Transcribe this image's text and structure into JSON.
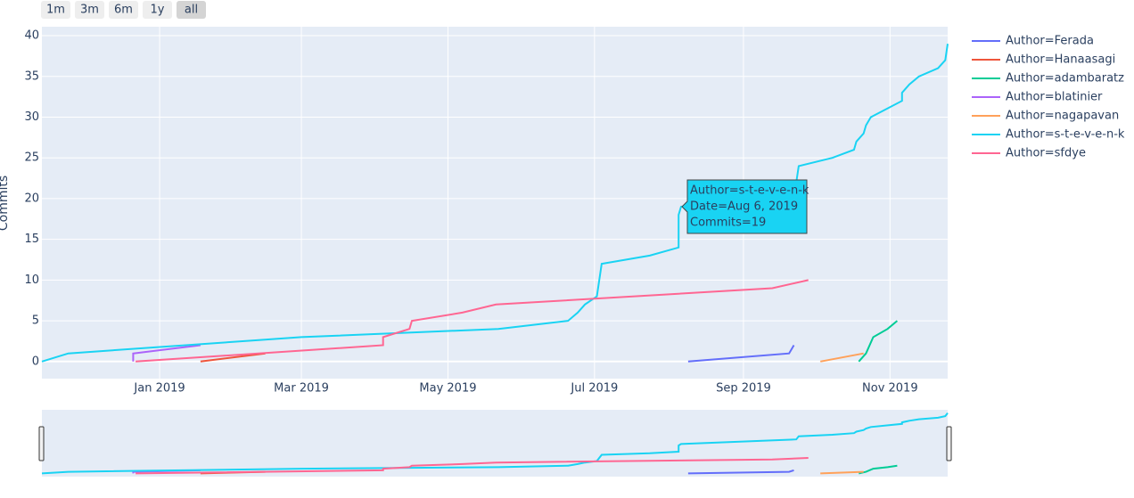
{
  "chart_data": {
    "type": "line",
    "y_label": "Commits",
    "buttons": [
      "1m",
      "3m",
      "6m",
      "1y",
      "all"
    ],
    "active_button": 4,
    "xlim": [
      "2018-11-13",
      "2019-11-25"
    ],
    "xticks": [
      {
        "value": "2019-01-01",
        "label": "Jan 2019"
      },
      {
        "value": "2019-03-01",
        "label": "Mar 2019"
      },
      {
        "value": "2019-05-01",
        "label": "May 2019"
      },
      {
        "value": "2019-07-01",
        "label": "Jul 2019"
      },
      {
        "value": "2019-09-01",
        "label": "Sep 2019"
      },
      {
        "value": "2019-11-01",
        "label": "Nov 2019"
      }
    ],
    "ylim": [
      -2.1,
      41.1
    ],
    "yticks": [
      0,
      5,
      10,
      15,
      20,
      25,
      30,
      35,
      40
    ],
    "grid": true,
    "legend_position": "right",
    "range_slider": true,
    "tooltip": [
      "Author=s-t-e-v-e-n-k",
      "Date=Aug 6, 2019",
      "Commits=19"
    ],
    "series": [
      {
        "name": "Author=Ferada",
        "color": "#636efa",
        "x": [
          "2019-08-09",
          "2019-09-20",
          "2019-09-22"
        ],
        "values": [
          0,
          1,
          2
        ]
      },
      {
        "name": "Author=Hanaasagi",
        "color": "#ef553b",
        "x": [
          "2019-01-18",
          "2019-02-14"
        ],
        "values": [
          0,
          1
        ]
      },
      {
        "name": "Author=adambaratz",
        "color": "#00cc96",
        "x": [
          "2019-10-19",
          "2019-10-22",
          "2019-10-25",
          "2019-10-31",
          "2019-11-04"
        ],
        "values": [
          0,
          1,
          3,
          4,
          5
        ]
      },
      {
        "name": "Author=blatinier",
        "color": "#ab63fa",
        "x": [
          "2018-12-21",
          "2018-12-21",
          "2019-01-18"
        ],
        "values": [
          0,
          1,
          2
        ]
      },
      {
        "name": "Author=nagapavan",
        "color": "#ffa15a",
        "x": [
          "2019-10-03",
          "2019-10-21"
        ],
        "values": [
          0,
          1
        ]
      },
      {
        "name": "Author=s-t-e-v-e-n-k",
        "color": "#19d3f3",
        "x": [
          "2018-11-13",
          "2018-11-24",
          "2019-03-01",
          "2019-05-22",
          "2019-06-20",
          "2019-06-24",
          "2019-06-27",
          "2019-07-02",
          "2019-07-03",
          "2019-07-04",
          "2019-07-24",
          "2019-08-05",
          "2019-08-05",
          "2019-08-06",
          "2019-09-23",
          "2019-09-24",
          "2019-10-08",
          "2019-10-17",
          "2019-10-18",
          "2019-10-21",
          "2019-10-22",
          "2019-10-24",
          "2019-11-06",
          "2019-11-06",
          "2019-11-09",
          "2019-11-13",
          "2019-11-21",
          "2019-11-24",
          "2019-11-25"
        ],
        "values": [
          0,
          1,
          3,
          4,
          5,
          6,
          7,
          8,
          10,
          12,
          13,
          14,
          18,
          19,
          22,
          24,
          25,
          26,
          27,
          28,
          29,
          30,
          32,
          33,
          34,
          35,
          36,
          37,
          39
        ]
      },
      {
        "name": "Author=sfdye",
        "color": "#ff6692",
        "x": [
          "2018-12-22",
          "2019-04-04",
          "2019-04-04",
          "2019-04-15",
          "2019-04-16",
          "2019-05-07",
          "2019-05-21",
          "2019-09-13",
          "2019-09-28"
        ],
        "values": [
          0,
          2,
          3,
          4,
          5,
          6,
          7,
          9,
          10
        ]
      }
    ]
  }
}
